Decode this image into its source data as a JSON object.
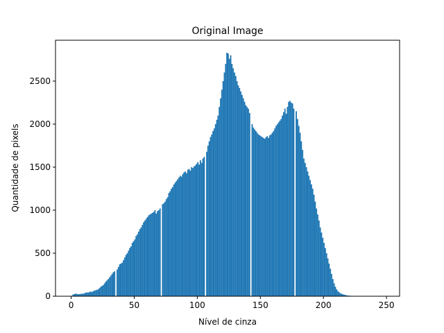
{
  "chart_data": {
    "type": "histogram",
    "title": "Original Image",
    "x_label": "Nível de cinza",
    "y_label": "Quantidade de pixels",
    "color": "#1f77b4",
    "bins": [
      0,
      1,
      2,
      3,
      4,
      5,
      6,
      7,
      8,
      9,
      10,
      11,
      12,
      13,
      14,
      15,
      16,
      17,
      18,
      19,
      20,
      21,
      22,
      23,
      24,
      25,
      26,
      27,
      28,
      29,
      30,
      31,
      32,
      33,
      34,
      35,
      36,
      37,
      38,
      39,
      40,
      41,
      42,
      43,
      44,
      45,
      46,
      47,
      48,
      49,
      50,
      51,
      52,
      53,
      54,
      55,
      56,
      57,
      58,
      59,
      60,
      61,
      62,
      63,
      64,
      65,
      66,
      67,
      68,
      69,
      70,
      71,
      72,
      73,
      74,
      75,
      76,
      77,
      78,
      79,
      80,
      81,
      82,
      83,
      84,
      85,
      86,
      87,
      88,
      89,
      90,
      91,
      92,
      93,
      94,
      95,
      96,
      97,
      98,
      99,
      100,
      101,
      102,
      103,
      104,
      105,
      106,
      107,
      108,
      109,
      110,
      111,
      112,
      113,
      114,
      115,
      116,
      117,
      118,
      119,
      120,
      121,
      122,
      123,
      124,
      125,
      126,
      127,
      128,
      129,
      130,
      131,
      132,
      133,
      134,
      135,
      136,
      137,
      138,
      139,
      140,
      141,
      142,
      143,
      144,
      145,
      146,
      147,
      148,
      149,
      150,
      151,
      152,
      153,
      154,
      155,
      156,
      157,
      158,
      159,
      160,
      161,
      162,
      163,
      164,
      165,
      166,
      167,
      168,
      169,
      170,
      171,
      172,
      173,
      174,
      175,
      176,
      177,
      178,
      179,
      180,
      181,
      182,
      183,
      184,
      185,
      186,
      187,
      188,
      189,
      190,
      191,
      192,
      193,
      194,
      195,
      196,
      197,
      198,
      199,
      200,
      201,
      202,
      203,
      204,
      205,
      206,
      207,
      208,
      209,
      210,
      211,
      212,
      213,
      214,
      215,
      216,
      217,
      218,
      219,
      220,
      221,
      222,
      223,
      224,
      225,
      226,
      227,
      228,
      229,
      230,
      231,
      232,
      233,
      234,
      235,
      236,
      237,
      238,
      239,
      240,
      241,
      242,
      243,
      244,
      245,
      246,
      247,
      248,
      249
    ],
    "values": [
      5,
      20,
      25,
      30,
      28,
      22,
      25,
      27,
      30,
      28,
      35,
      40,
      45,
      42,
      50,
      55,
      48,
      60,
      65,
      70,
      75,
      80,
      95,
      110,
      120,
      130,
      150,
      170,
      185,
      200,
      220,
      240,
      260,
      280,
      290,
      0,
      310,
      340,
      370,
      380,
      390,
      420,
      450,
      480,
      500,
      530,
      560,
      580,
      620,
      640,
      660,
      700,
      720,
      750,
      780,
      800,
      830,
      860,
      880,
      900,
      920,
      940,
      950,
      960,
      970,
      980,
      1000,
      960,
      990,
      1000,
      1020,
      0,
      1070,
      1080,
      1100,
      1130,
      1150,
      1200,
      1220,
      1250,
      1270,
      1300,
      1320,
      1340,
      1360,
      1380,
      1400,
      1390,
      1420,
      1440,
      1450,
      1430,
      1470,
      1480,
      1460,
      1500,
      1490,
      1510,
      1520,
      1540,
      1560,
      1530,
      1580,
      1550,
      1600,
      1620,
      0,
      1680,
      1750,
      1800,
      1850,
      1880,
      1920,
      1950,
      2000,
      2050,
      2100,
      2200,
      2300,
      2400,
      2500,
      2600,
      2700,
      2830,
      2820,
      2760,
      2800,
      2700,
      2650,
      2600,
      2560,
      2500,
      2450,
      2420,
      2380,
      2340,
      2300,
      2260,
      2220,
      2200,
      2180,
      2130,
      0,
      2000,
      1960,
      1940,
      1920,
      1900,
      1880,
      1870,
      1860,
      1850,
      1840,
      1830,
      1850,
      1860,
      1840,
      1870,
      1880,
      1900,
      1920,
      1950,
      1980,
      2000,
      2020,
      2040,
      2060,
      2100,
      2140,
      2180,
      2120,
      2200,
      2260,
      2270,
      2250,
      2240,
      2180,
      0,
      2150,
      2060,
      1980,
      1900,
      1800,
      1700,
      1600,
      1550,
      1500,
      1450,
      1400,
      1350,
      1300,
      1250,
      1180,
      1100,
      1020,
      950,
      880,
      800,
      740,
      680,
      620,
      560,
      500,
      440,
      380,
      320,
      260,
      200,
      150,
      110,
      80,
      60,
      45,
      35,
      28,
      22,
      18,
      14,
      10,
      8,
      6,
      5,
      4,
      3,
      3,
      2,
      2,
      1,
      1,
      1,
      1,
      1,
      0,
      0,
      1,
      0,
      0,
      0,
      0,
      0,
      0,
      0,
      0,
      0,
      0,
      0,
      0,
      0,
      1
    ],
    "xlim": [
      -12.4,
      260.4
    ],
    "ylim": [
      0,
      2975
    ],
    "xticks": [
      0,
      50,
      100,
      150,
      200,
      250
    ],
    "yticks": [
      0,
      500,
      1000,
      1500,
      2000,
      2500
    ]
  }
}
